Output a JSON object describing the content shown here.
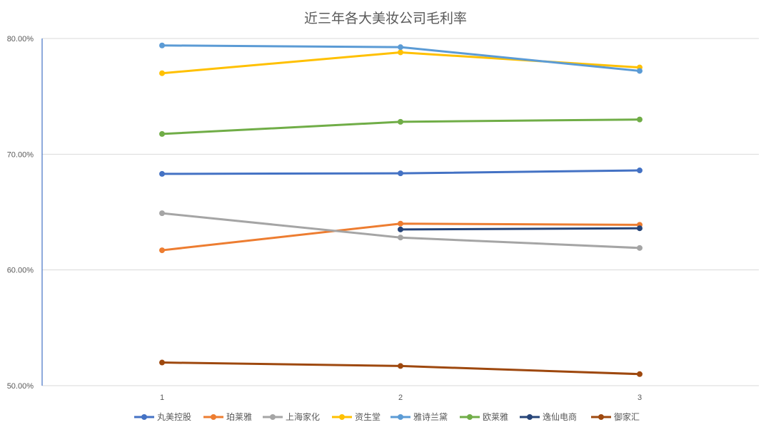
{
  "chart_data": {
    "type": "line",
    "title": "近三年各大美妆公司毛利率",
    "xlabel": "",
    "ylabel": "",
    "categories": [
      "1",
      "2",
      "3"
    ],
    "ylim": [
      0.5,
      0.8
    ],
    "yticks": [
      "50.00%",
      "60.00%",
      "70.00%",
      "80.00%"
    ],
    "ytick_values": [
      0.5,
      0.6,
      0.7,
      0.8
    ],
    "grid": true,
    "legend_position": "bottom",
    "series": [
      {
        "name": "丸美控股",
        "color": "#4472C4",
        "values": [
          0.683,
          0.6835,
          0.686
        ]
      },
      {
        "name": "珀莱雅",
        "color": "#ED7D31",
        "values": [
          0.617,
          0.64,
          0.639
        ]
      },
      {
        "name": "上海家化",
        "color": "#A5A5A5",
        "values": [
          0.649,
          0.628,
          0.619
        ]
      },
      {
        "name": "资生堂",
        "color": "#FFC000",
        "values": [
          0.77,
          0.788,
          0.775
        ]
      },
      {
        "name": "雅诗兰黛",
        "color": "#5B9BD5",
        "values": [
          0.794,
          0.7925,
          0.772
        ]
      },
      {
        "name": "欧莱雅",
        "color": "#70AD47",
        "values": [
          0.7175,
          0.728,
          0.73
        ]
      },
      {
        "name": "逸仙电商",
        "color": "#264478",
        "values": [
          null,
          0.635,
          0.636
        ]
      },
      {
        "name": "御家汇",
        "color": "#9E480E",
        "values": [
          0.52,
          0.517,
          0.51
        ]
      }
    ]
  }
}
